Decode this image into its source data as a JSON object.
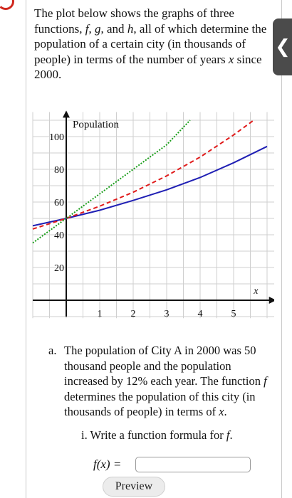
{
  "ui": {
    "toggle_glyph": "❮"
  },
  "intro": {
    "p1": "The plot below shows the graphs of three functions, ",
    "f": "f",
    "sep1": ", ",
    "g": "g",
    "sep2": ", and ",
    "h": "h",
    "p2": ", all of which determine the population of a certain city (in thousands of people) in terms of the number of years ",
    "x": "x",
    "p3": " since 2000."
  },
  "part_a": {
    "label": "a.",
    "p1": "The population of City A in 2000 was 50 thousand people and the population increased by 12% each year. The function ",
    "f": "f",
    "p2": " determines the population of this city (in thousands of people) in terms of ",
    "x": "x",
    "p3": "."
  },
  "part_i": {
    "p1": "i. Write a function formula for ",
    "f": "f",
    "p2": "."
  },
  "answer": {
    "label": "f(x) =",
    "value": "",
    "preview_label": "Preview"
  },
  "chart_data": {
    "type": "line",
    "ylabel": "Population",
    "xlabel": "x",
    "xlim": [
      -1,
      6.3
    ],
    "ylim": [
      -11,
      115
    ],
    "x_ticks": [
      1,
      2,
      3,
      4,
      5
    ],
    "y_ticks": [
      20,
      40,
      60,
      80,
      100
    ],
    "grid": true,
    "series": [
      {
        "style": "solid",
        "color": "#1f1fb4",
        "points": [
          [
            -1,
            45.5
          ],
          [
            0,
            50
          ],
          [
            1,
            55
          ],
          [
            2,
            61
          ],
          [
            3,
            67.5
          ],
          [
            4,
            75
          ],
          [
            5,
            84
          ],
          [
            6,
            94
          ]
        ]
      },
      {
        "style": "dashed",
        "color": "#e01b1b",
        "points": [
          [
            -1,
            43.5
          ],
          [
            0,
            50
          ],
          [
            1,
            57.5
          ],
          [
            2,
            66
          ],
          [
            3,
            76
          ],
          [
            4,
            87.5
          ],
          [
            5,
            101
          ],
          [
            5.6,
            110
          ]
        ]
      },
      {
        "style": "dotted",
        "color": "#1a9e1a",
        "points": [
          [
            -1,
            35
          ],
          [
            0,
            50
          ],
          [
            1,
            65
          ],
          [
            2,
            80
          ],
          [
            3,
            95
          ],
          [
            3.7,
            110
          ]
        ]
      }
    ]
  }
}
